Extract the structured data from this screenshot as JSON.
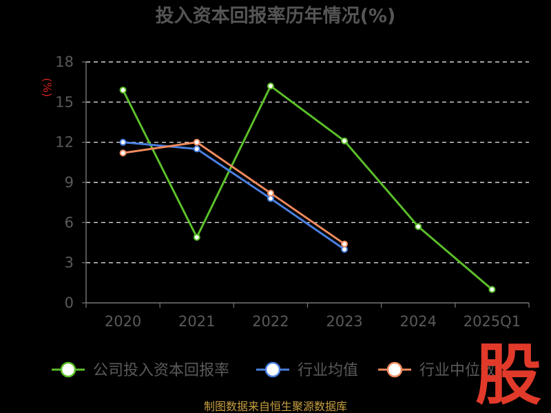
{
  "chart_data": {
    "type": "line",
    "title": "投入资本回报率历年情况(%)",
    "ylabel": "(%)",
    "categories": [
      "2020",
      "2021",
      "2022",
      "2023",
      "2024",
      "2025Q1"
    ],
    "yticks": [
      "0",
      "3",
      "6",
      "9",
      "12",
      "15",
      "18"
    ],
    "ylim": [
      0,
      18
    ],
    "grid": "horizontal dashed",
    "legend_position": "bottom",
    "series": [
      {
        "name": "公司投入资本回报率",
        "color": "#5cbf2a",
        "values": [
          15.9,
          4.9,
          16.2,
          12.1,
          5.7,
          1.0
        ]
      },
      {
        "name": "行业均值",
        "color": "#4a7fe0",
        "values": [
          12.0,
          11.5,
          7.8,
          4.0,
          null,
          null
        ]
      },
      {
        "name": "行业中位数",
        "color": "#f08a5d",
        "values": [
          11.2,
          12.0,
          8.2,
          4.4,
          null,
          null
        ]
      }
    ]
  },
  "source": "制图数据来自恒生聚源数据库",
  "logo_text": "股"
}
